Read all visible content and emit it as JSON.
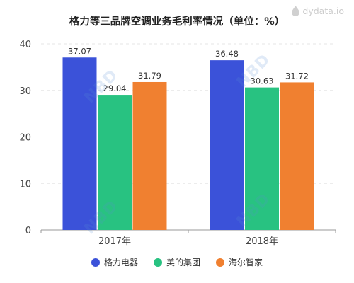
{
  "title": "格力等三品牌空调业务毛利率情况（单位：%）",
  "brand": {
    "text": "dydata.io",
    "icon": "droplet-icon",
    "color": "#cccccc"
  },
  "watermark": {
    "text": "NBD"
  },
  "chart_data": {
    "type": "bar",
    "title": "格力等三品牌空调业务毛利率情况（单位：%）",
    "categories": [
      "2017年",
      "2018年"
    ],
    "series": [
      {
        "name": "格力电器",
        "values": [
          37.07,
          36.48
        ],
        "color": "#3b52d9"
      },
      {
        "name": "美的集团",
        "values": [
          29.04,
          30.63
        ],
        "color": "#28c281"
      },
      {
        "name": "海尔智家",
        "values": [
          31.79,
          31.72
        ],
        "color": "#f08030"
      }
    ],
    "ylim": [
      0,
      40
    ],
    "yticks": [
      0,
      10,
      20,
      30,
      40
    ],
    "grid": true,
    "legend": "bottom"
  }
}
